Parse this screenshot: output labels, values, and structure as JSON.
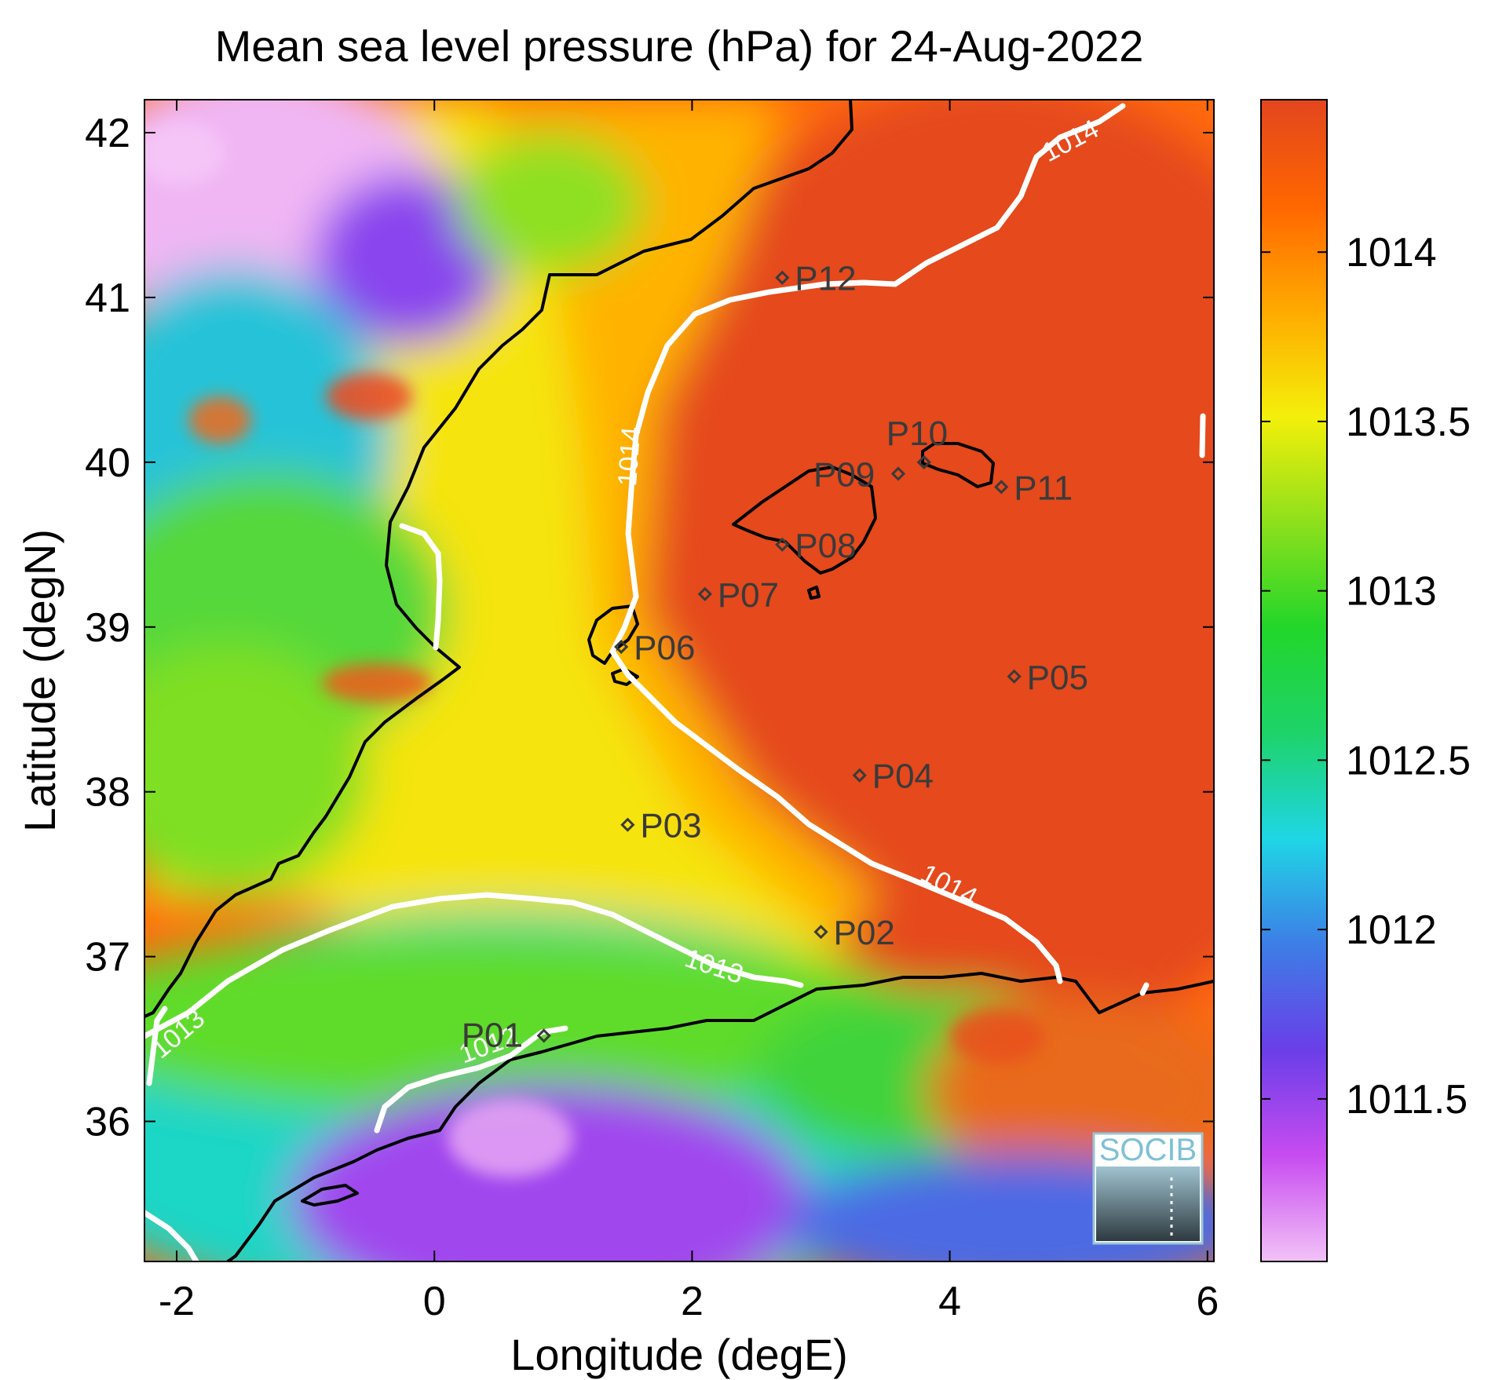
{
  "title": "Mean sea level pressure (hPa) for 24-Aug-2022",
  "xlabel": "Longitude (degE)",
  "ylabel": "Latitude (degN)",
  "x_ticks": [
    -2,
    0,
    2,
    4,
    6
  ],
  "y_ticks": [
    36,
    37,
    38,
    39,
    40,
    41,
    42
  ],
  "colorbar": {
    "ticks": [
      1011.5,
      1012,
      1012.5,
      1013,
      1013.5,
      1014
    ],
    "range": [
      1011.02,
      1014.45
    ],
    "colormap": [
      "#f2c2f7",
      "#c84cf0",
      "#6a3ee8",
      "#3d7ee6",
      "#1fd6e6",
      "#1ed36a",
      "#22d62a",
      "#8ee01c",
      "#f4ef0a",
      "#ffaa00",
      "#ff6600",
      "#e2461e"
    ]
  },
  "logo": "SOCIB",
  "stations": [
    {
      "id": "P01",
      "lon": 0.85,
      "lat": 36.52
    },
    {
      "id": "P02",
      "lon": 3.0,
      "lat": 37.15
    },
    {
      "id": "P03",
      "lon": 1.5,
      "lat": 37.8
    },
    {
      "id": "P04",
      "lon": 3.3,
      "lat": 38.1
    },
    {
      "id": "P05",
      "lon": 4.5,
      "lat": 38.7
    },
    {
      "id": "P06",
      "lon": 1.45,
      "lat": 38.88
    },
    {
      "id": "P07",
      "lon": 2.1,
      "lat": 39.2
    },
    {
      "id": "P08",
      "lon": 2.7,
      "lat": 39.5
    },
    {
      "id": "P09",
      "lon": 3.6,
      "lat": 39.93
    },
    {
      "id": "P10",
      "lon": 3.8,
      "lat": 40.0
    },
    {
      "id": "P11",
      "lon": 4.4,
      "lat": 39.85
    },
    {
      "id": "P12",
      "lon": 2.7,
      "lat": 41.12
    }
  ],
  "contour_labels": [
    "1014",
    "1014",
    "1014",
    "1013",
    "1013",
    "1012"
  ],
  "map_extent": {
    "lon": [
      -2.25,
      6.05
    ],
    "lat": [
      35.15,
      42.2
    ]
  }
}
